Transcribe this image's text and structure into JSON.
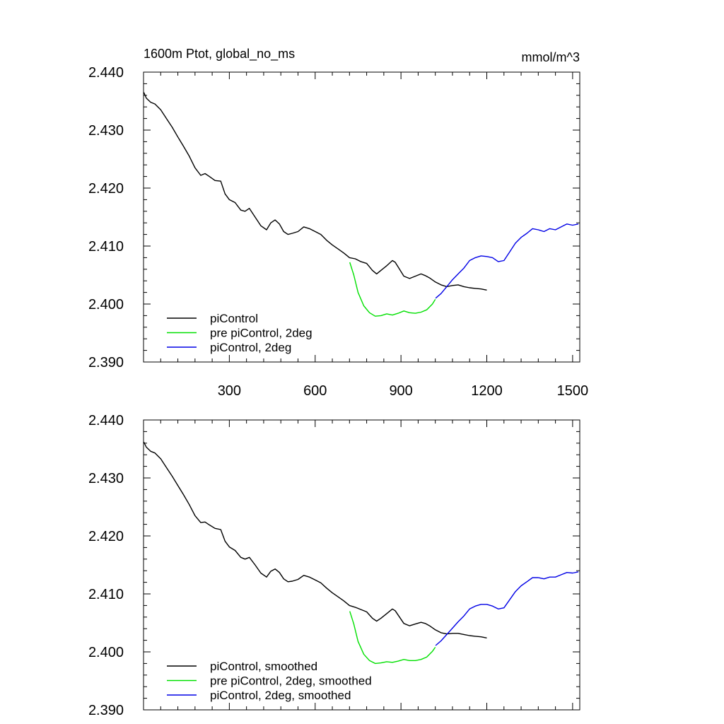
{
  "colors": {
    "piControl": "#000000",
    "prePiControl2deg": "#00e000",
    "piControl2deg": "#0000e6"
  },
  "chart_data": [
    {
      "type": "line",
      "title": "1600m Ptot, global_no_ms",
      "units": "mmol/m^3",
      "xlim": [
        0,
        1525
      ],
      "ylim": [
        2.39,
        2.44
      ],
      "x_ticks": [
        300,
        600,
        900,
        1200,
        1500
      ],
      "x_tick_labels": [
        "300",
        "600",
        "900",
        "1200",
        "1500"
      ],
      "y_ticks": [
        2.39,
        2.4,
        2.41,
        2.42,
        2.43,
        2.44
      ],
      "y_tick_labels": [
        "2.390",
        "2.400",
        "2.410",
        "2.420",
        "2.430",
        "2.440"
      ],
      "legend_position": "bottom-left",
      "series": [
        {
          "name": "piControl",
          "color_key": "piControl",
          "x": [
            1,
            10,
            25,
            40,
            60,
            80,
            100,
            120,
            140,
            160,
            180,
            200,
            215,
            230,
            250,
            270,
            285,
            300,
            320,
            340,
            355,
            370,
            390,
            410,
            430,
            445,
            460,
            475,
            490,
            505,
            520,
            540,
            560,
            580,
            600,
            620,
            640,
            660,
            680,
            700,
            720,
            740,
            760,
            780,
            800,
            815,
            830,
            850,
            870,
            880,
            895,
            910,
            930,
            950,
            970,
            985,
            1000,
            1020,
            1040,
            1060,
            1080,
            1100,
            1120,
            1140,
            1160,
            1180,
            1200
          ],
          "y": [
            2.4365,
            2.4355,
            2.4348,
            2.4345,
            2.4335,
            2.432,
            2.4305,
            2.4288,
            2.4272,
            2.4255,
            2.4235,
            2.4222,
            2.4225,
            2.422,
            2.4213,
            2.4212,
            2.419,
            2.418,
            2.4175,
            2.4162,
            2.416,
            2.4165,
            2.415,
            2.4135,
            2.4128,
            2.414,
            2.4145,
            2.4138,
            2.4125,
            2.412,
            2.4122,
            2.4125,
            2.4133,
            2.413,
            2.4125,
            2.412,
            2.411,
            2.4102,
            2.4095,
            2.4088,
            2.408,
            2.4078,
            2.4073,
            2.407,
            2.4058,
            2.4052,
            2.4058,
            2.4066,
            2.4075,
            2.4072,
            2.406,
            2.4048,
            2.4044,
            2.4048,
            2.4052,
            2.4049,
            2.4045,
            2.4038,
            2.4033,
            2.403,
            2.4032,
            2.4033,
            2.403,
            2.4028,
            2.4027,
            2.4026,
            2.4024
          ]
        },
        {
          "name": "pre piControl, 2deg",
          "color_key": "prePiControl2deg",
          "x": [
            721,
            735,
            750,
            770,
            790,
            810,
            830,
            850,
            870,
            890,
            910,
            930,
            950,
            970,
            990,
            1010,
            1020
          ],
          "y": [
            2.4072,
            2.405,
            2.402,
            2.3997,
            2.3985,
            2.3979,
            2.398,
            2.3983,
            2.3981,
            2.3984,
            2.3988,
            2.3985,
            2.3984,
            2.3986,
            2.399,
            2.4,
            2.4008
          ]
        },
        {
          "name": "piControl, 2deg",
          "color_key": "piControl2deg",
          "x": [
            1021,
            1040,
            1060,
            1080,
            1100,
            1120,
            1140,
            1160,
            1180,
            1200,
            1220,
            1240,
            1260,
            1280,
            1300,
            1320,
            1340,
            1360,
            1380,
            1400,
            1420,
            1440,
            1460,
            1480,
            1500,
            1520
          ],
          "y": [
            2.401,
            2.4018,
            2.403,
            2.4042,
            2.4052,
            2.4062,
            2.4075,
            2.408,
            2.4083,
            2.4082,
            2.408,
            2.4073,
            2.4075,
            2.409,
            2.4105,
            2.4115,
            2.4122,
            2.413,
            2.4128,
            2.4125,
            2.413,
            2.4128,
            2.4133,
            2.4138,
            2.4136,
            2.4138
          ]
        }
      ]
    },
    {
      "type": "line",
      "title": "",
      "xlim": [
        0,
        1525
      ],
      "ylim": [
        2.39,
        2.44
      ],
      "x_ticks": [
        300,
        600,
        900,
        1200,
        1500
      ],
      "x_tick_labels": [],
      "y_ticks": [
        2.39,
        2.4,
        2.41,
        2.42,
        2.43,
        2.44
      ],
      "y_tick_labels": [
        "2.390",
        "2.400",
        "2.410",
        "2.420",
        "2.430",
        "2.440"
      ],
      "legend_position": "bottom-left",
      "series": [
        {
          "name": "piControl, smoothed",
          "color_key": "piControl",
          "x": [
            1,
            10,
            25,
            40,
            60,
            80,
            100,
            120,
            140,
            160,
            180,
            200,
            215,
            230,
            250,
            270,
            285,
            300,
            320,
            340,
            355,
            370,
            390,
            410,
            430,
            445,
            460,
            475,
            490,
            505,
            520,
            540,
            560,
            580,
            600,
            620,
            640,
            660,
            680,
            700,
            720,
            740,
            760,
            780,
            800,
            815,
            830,
            850,
            870,
            880,
            895,
            910,
            930,
            950,
            970,
            985,
            1000,
            1020,
            1040,
            1060,
            1080,
            1100,
            1120,
            1140,
            1160,
            1180,
            1200
          ],
          "y": [
            2.4362,
            2.4353,
            2.4346,
            2.4343,
            2.4333,
            2.4318,
            2.4303,
            2.4287,
            2.4271,
            2.4254,
            2.4235,
            2.4223,
            2.4224,
            2.4219,
            2.4213,
            2.4211,
            2.4191,
            2.4181,
            2.4175,
            2.4163,
            2.416,
            2.4163,
            2.415,
            2.4136,
            2.4129,
            2.4139,
            2.4143,
            2.4137,
            2.4126,
            2.4121,
            2.4122,
            2.4125,
            2.4132,
            2.4129,
            2.4124,
            2.4119,
            2.411,
            2.4102,
            2.4095,
            2.4088,
            2.408,
            2.4077,
            2.4073,
            2.4069,
            2.4058,
            2.4053,
            2.4058,
            2.4066,
            2.4074,
            2.4071,
            2.406,
            2.4049,
            2.4045,
            2.4048,
            2.4051,
            2.4049,
            2.4045,
            2.4038,
            2.4033,
            2.4031,
            2.4032,
            2.4032,
            2.403,
            2.4028,
            2.4027,
            2.4026,
            2.4024
          ]
        },
        {
          "name": "pre piControl, 2deg, smoothed",
          "color_key": "prePiControl2deg",
          "x": [
            721,
            735,
            750,
            770,
            790,
            810,
            830,
            850,
            870,
            890,
            910,
            930,
            950,
            970,
            990,
            1010,
            1020
          ],
          "y": [
            2.407,
            2.4048,
            2.4018,
            2.3996,
            2.3985,
            2.398,
            2.3981,
            2.3983,
            2.3982,
            2.3984,
            2.3987,
            2.3985,
            2.3985,
            2.3987,
            2.3991,
            2.4001,
            2.4008
          ]
        },
        {
          "name": "piControl, 2deg, smoothed",
          "color_key": "piControl2deg",
          "x": [
            1021,
            1040,
            1060,
            1080,
            1100,
            1120,
            1140,
            1160,
            1180,
            1200,
            1220,
            1240,
            1260,
            1280,
            1300,
            1320,
            1340,
            1360,
            1380,
            1400,
            1420,
            1440,
            1460,
            1480,
            1500,
            1520
          ],
          "y": [
            2.4011,
            2.4019,
            2.403,
            2.4041,
            2.4052,
            2.4062,
            2.4074,
            2.4079,
            2.4082,
            2.4082,
            2.4079,
            2.4074,
            2.4076,
            2.409,
            2.4104,
            2.4114,
            2.4121,
            2.4128,
            2.4128,
            2.4126,
            2.4129,
            2.4129,
            2.4133,
            2.4137,
            2.4136,
            2.4138
          ]
        }
      ]
    }
  ]
}
